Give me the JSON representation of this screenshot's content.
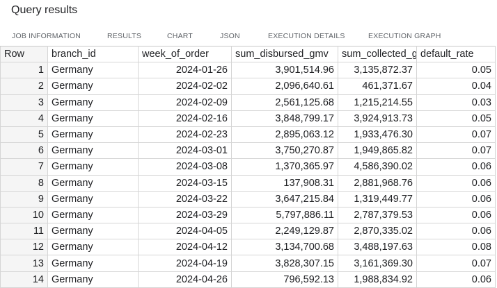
{
  "panel": {
    "title": "Query results"
  },
  "tabs": [
    {
      "label": "JOB INFORMATION"
    },
    {
      "label": "RESULTS"
    },
    {
      "label": "CHART"
    },
    {
      "label": "JSON"
    },
    {
      "label": "EXECUTION DETAILS"
    },
    {
      "label": "EXECUTION GRAPH"
    }
  ],
  "table": {
    "headers": [
      "Row",
      "branch_id",
      "week_of_order",
      "sum_disbursed_gmv",
      "sum_collected_g",
      "default_rate"
    ],
    "rows": [
      [
        "1",
        "Germany",
        "2024-01-26",
        "3,901,514.96",
        "3,135,872.37",
        "0.05"
      ],
      [
        "2",
        "Germany",
        "2024-02-02",
        "2,096,640.61",
        "461,371.67",
        "0.04"
      ],
      [
        "3",
        "Germany",
        "2024-02-09",
        "2,561,125.68",
        "1,215,214.55",
        "0.03"
      ],
      [
        "4",
        "Germany",
        "2024-02-16",
        "3,848,799.17",
        "3,924,913.73",
        "0.05"
      ],
      [
        "5",
        "Germany",
        "2024-02-23",
        "2,895,063.12",
        "1,933,476.30",
        "0.07"
      ],
      [
        "6",
        "Germany",
        "2024-03-01",
        "3,750,270.87",
        "1,949,865.82",
        "0.07"
      ],
      [
        "7",
        "Germany",
        "2024-03-08",
        "1,370,365.97",
        "4,586,390.02",
        "0.06"
      ],
      [
        "8",
        "Germany",
        "2024-03-15",
        "137,908.31",
        "2,881,968.76",
        "0.06"
      ],
      [
        "9",
        "Germany",
        "2024-03-22",
        "3,647,215.84",
        "1,319,449.77",
        "0.06"
      ],
      [
        "10",
        "Germany",
        "2024-03-29",
        "5,797,886.11",
        "2,787,379.53",
        "0.06"
      ],
      [
        "11",
        "Germany",
        "2024-04-05",
        "2,249,129.87",
        "2,870,335.02",
        "0.06"
      ],
      [
        "12",
        "Germany",
        "2024-04-12",
        "3,134,700.68",
        "3,488,197.63",
        "0.08"
      ],
      [
        "13",
        "Germany",
        "2024-04-19",
        "3,828,307.15",
        "3,161,369.30",
        "0.07"
      ],
      [
        "14",
        "Germany",
        "2024-04-26",
        "796,592.13",
        "1,988,834.92",
        "0.06"
      ]
    ]
  }
}
